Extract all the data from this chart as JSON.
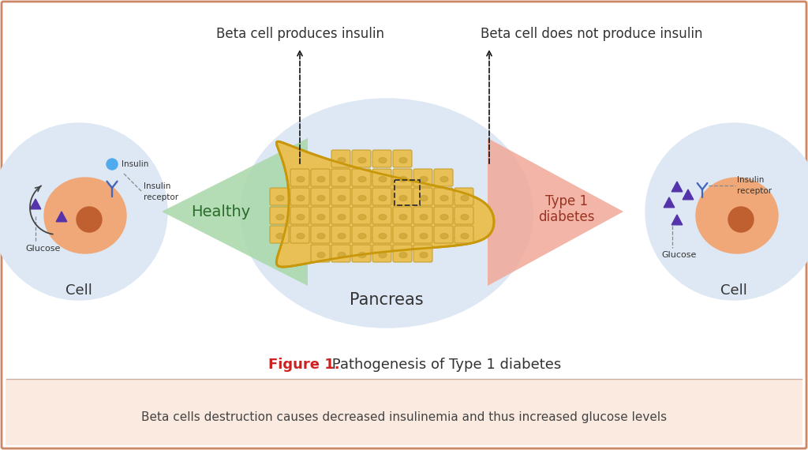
{
  "title": "Figure 1.",
  "title_rest": " Pathogenesis of Type 1 diabetes",
  "caption": "Beta cells destruction causes decreased insulinemia and thus increased glucose levels",
  "label_beta_healthy": "Beta cell produces insulin",
  "label_beta_diabetic": "Beta cell does not produce insulin",
  "label_healthy": "Healthy",
  "label_diabetes": "Type 1\ndiabetes",
  "label_pancreas": "Pancreas",
  "label_cell": "Cell",
  "label_insulin": "Insulin",
  "label_insulin_receptor": "Insulin\nreceptor",
  "label_glucose": "Glucose",
  "bg_color": "#ffffff",
  "bottom_bar_color": "#faeae0",
  "cell_bg_color": "#dde8f4",
  "cell_body_color": "#f0a878",
  "cell_nucleus_color": "#c06030",
  "healthy_cone_color": "#a8d8a8",
  "diabetes_cone_color": "#f0a898",
  "insulin_dot_color": "#50aaee",
  "receptor_color": "#4466bb",
  "triangle_color": "#5533aa",
  "pancreas_fill": "#e8c055",
  "pancreas_edge": "#c8980a",
  "waffle_dark": "#c8a030",
  "title_color": "#cc2222",
  "border_color": "#cc8866",
  "separator_color": "#d0b0a0"
}
